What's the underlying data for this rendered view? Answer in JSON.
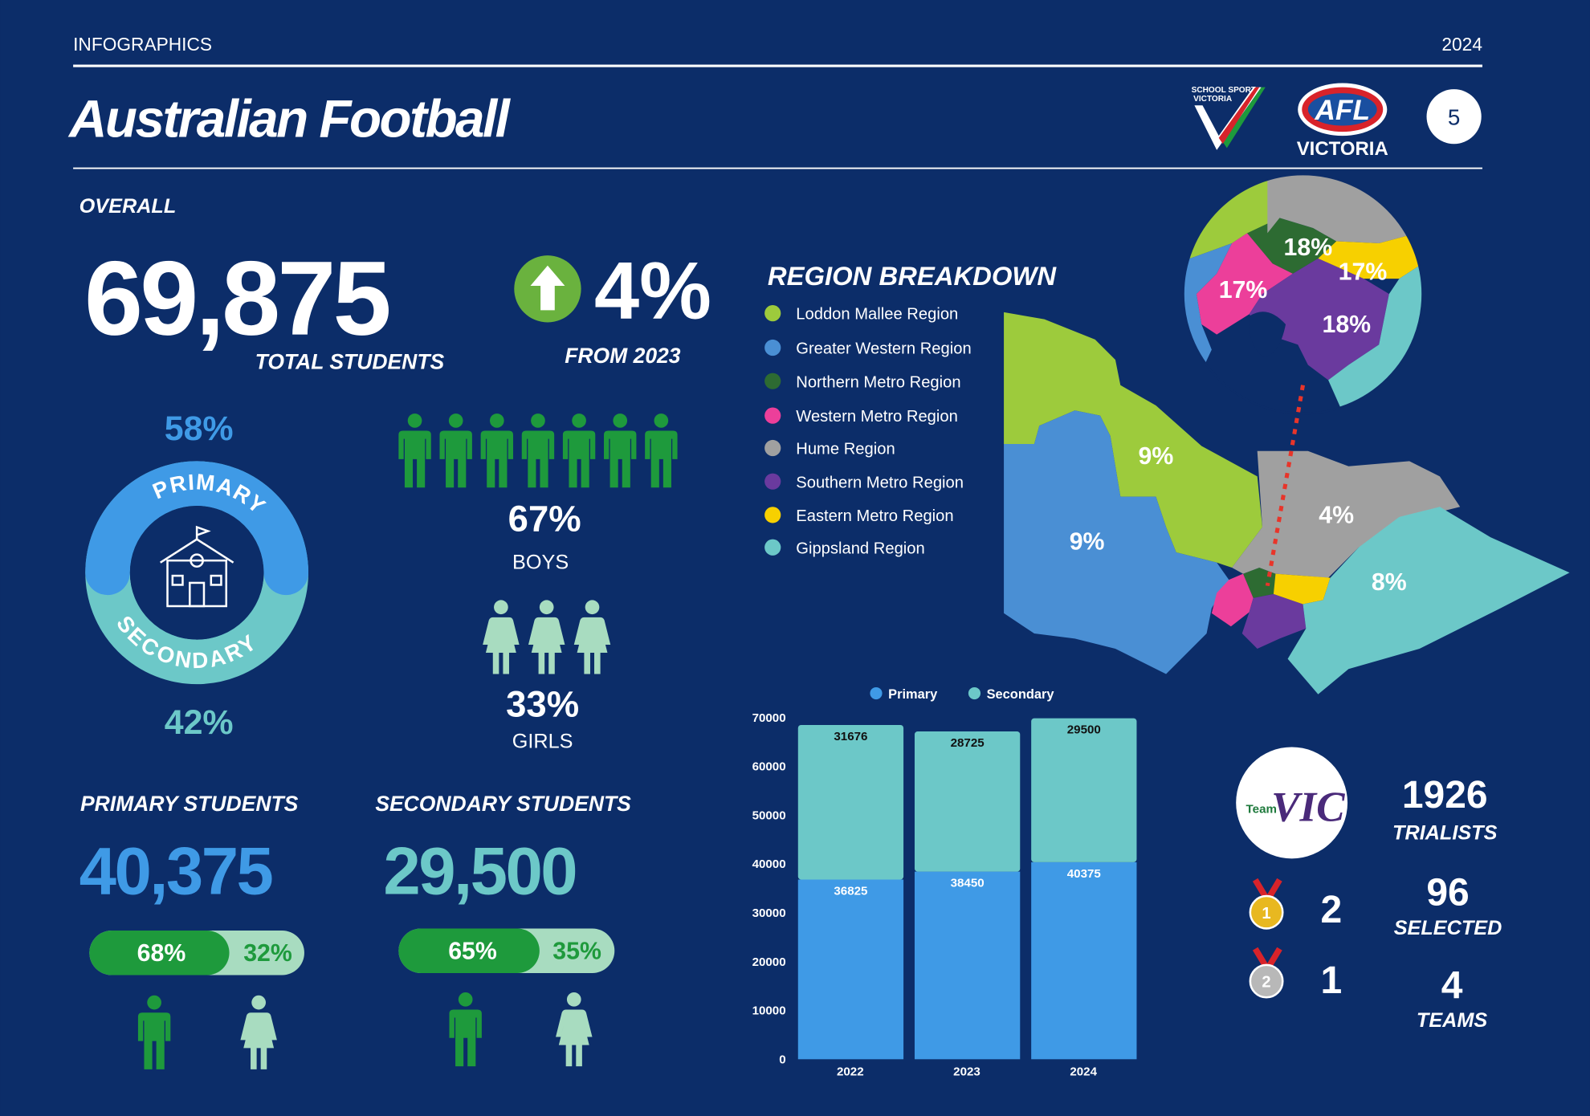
{
  "header": {
    "section": "INFOGRAPHICS",
    "year": "2024",
    "title": "Australian Football",
    "page": "5"
  },
  "logos": {
    "ssv_line1": "SCHOOL SPORT",
    "ssv_line2": "VICTORIA",
    "afl": "AFL",
    "afl_sub": "VICTORIA",
    "team": "Team",
    "vic": "VIC"
  },
  "overall": {
    "heading": "OVERALL",
    "total": "69,875",
    "total_label": "TOTAL STUDENTS",
    "change": "4%",
    "change_label": "FROM 2023"
  },
  "school_level": {
    "primary_share": "58%",
    "primary_label": "PRIMARY",
    "secondary_label": "SECONDARY",
    "secondary_share": "42%"
  },
  "gender": {
    "boys_share": "67%",
    "boys_label": "BOYS",
    "girls_share": "33%",
    "girls_label": "GIRLS"
  },
  "primary_students": {
    "heading": "PRIMARY STUDENTS",
    "total": "40,375",
    "boys_share": "68%",
    "girls_share": "32%"
  },
  "secondary_students": {
    "heading": "SECONDARY STUDENTS",
    "total": "29,500",
    "boys_share": "65%",
    "girls_share": "35%"
  },
  "region_breakdown": {
    "title": "REGION BREAKDOWN",
    "regions": [
      {
        "name": "Loddon Mallee Region",
        "color": "#9dcb3c",
        "share": "9%"
      },
      {
        "name": "Greater Western Region",
        "color": "#4a8fd4",
        "share": "9%"
      },
      {
        "name": "Northern Metro Region",
        "color": "#2d6b32",
        "share": "18%"
      },
      {
        "name": "Western Metro Region",
        "color": "#ec3f9a",
        "share": "17%"
      },
      {
        "name": "Hume Region",
        "color": "#a0a0a0",
        "share": "4%"
      },
      {
        "name": "Southern Metro Region",
        "color": "#6a3a9e",
        "share": "18%"
      },
      {
        "name": "Eastern Metro Region",
        "color": "#f7d000",
        "share": "17%"
      },
      {
        "name": "Gippsland Region",
        "color": "#6cc8c8",
        "share": "8%"
      }
    ]
  },
  "team_vic": {
    "trialists": "1926",
    "trialists_label": "TRIALISTS",
    "medals": [
      {
        "rank": "1",
        "count": "2"
      },
      {
        "rank": "2",
        "count": "1"
      }
    ],
    "selected": "96",
    "selected_label": "SELECTED",
    "teams": "4",
    "teams_label": "TEAMS"
  },
  "chart_data": {
    "type": "bar",
    "stacked": true,
    "categories": [
      "2022",
      "2023",
      "2024"
    ],
    "series": [
      {
        "name": "Primary",
        "color": "#3f9ae6",
        "values": [
          36825,
          38450,
          40375
        ]
      },
      {
        "name": "Secondary",
        "color": "#6cc8c8",
        "values": [
          31676,
          28725,
          29500
        ]
      }
    ],
    "ylim": [
      0,
      70000
    ],
    "yticks": [
      0,
      10000,
      20000,
      30000,
      40000,
      50000,
      60000,
      70000
    ],
    "legend": "top"
  }
}
